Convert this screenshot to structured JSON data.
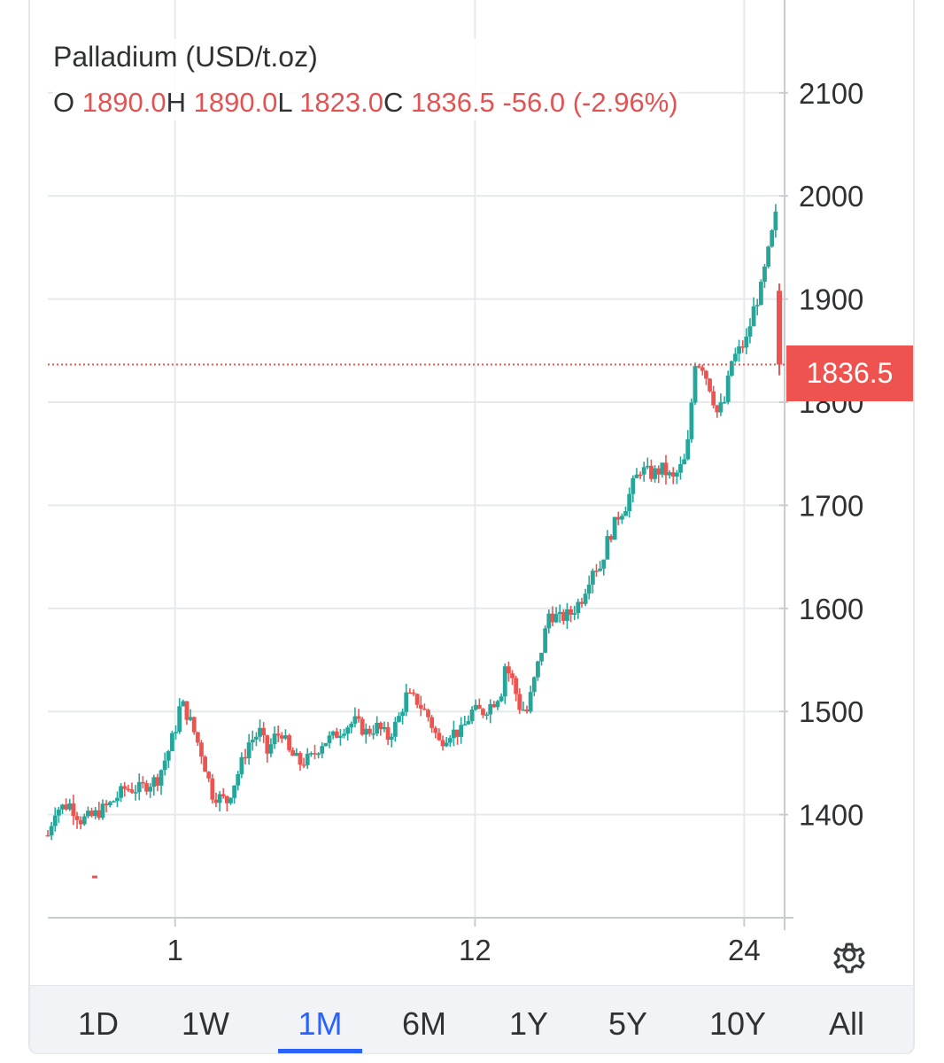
{
  "legend": {
    "title": "Palladium (USD/t.oz)",
    "o_label": "O",
    "o_value": "1890.0",
    "h_label": "H",
    "h_value": "1890.0",
    "l_label": "L",
    "l_value": "1823.0",
    "c_label": "C",
    "c_value": "1836.5",
    "change": "-56.0",
    "change_pct": "(-2.96%)"
  },
  "last_price_tag": "1836.5",
  "settings_icon": "gear-icon",
  "range_tabs": [
    {
      "label": "1D",
      "active": false
    },
    {
      "label": "1W",
      "active": false
    },
    {
      "label": "1M",
      "active": true
    },
    {
      "label": "6M",
      "active": false
    },
    {
      "label": "1Y",
      "active": false
    },
    {
      "label": "5Y",
      "active": false
    },
    {
      "label": "10Y",
      "active": false
    },
    {
      "label": "All",
      "active": false
    }
  ],
  "colors": {
    "up": "#26a69a",
    "down": "#ef5350",
    "grid": "#e6e9ec",
    "active_tab": "#2962ff",
    "text": "#2f3133"
  },
  "chart_data": {
    "type": "candlestick",
    "title": "Palladium (USD/t.oz)",
    "y_ticks": [
      1400,
      1500,
      1600,
      1700,
      1800,
      1900,
      2000,
      2100
    ],
    "ylim": [
      1300,
      2190
    ],
    "x_ticks": [
      {
        "label": "1",
        "t": 0.174
      },
      {
        "label": "12",
        "t": 0.584
      },
      {
        "label": "24",
        "t": 0.952
      }
    ],
    "last_price": 1836.5,
    "grid": true,
    "series": [
      {
        "path": [
          [
            0.0,
            1380
          ],
          [
            0.01,
            1405
          ],
          [
            0.03,
            1410
          ],
          [
            0.045,
            1395
          ],
          [
            0.06,
            1398
          ],
          [
            0.085,
            1410
          ],
          [
            0.105,
            1425
          ],
          [
            0.125,
            1425
          ],
          [
            0.15,
            1435
          ],
          [
            0.165,
            1462
          ],
          [
            0.175,
            1485
          ],
          [
            0.182,
            1510
          ],
          [
            0.195,
            1490
          ],
          [
            0.21,
            1460
          ],
          [
            0.225,
            1420
          ],
          [
            0.245,
            1413
          ],
          [
            0.26,
            1440
          ],
          [
            0.275,
            1470
          ],
          [
            0.29,
            1480
          ],
          [
            0.3,
            1460
          ],
          [
            0.31,
            1475
          ],
          [
            0.32,
            1480
          ],
          [
            0.33,
            1460
          ],
          [
            0.345,
            1450
          ],
          [
            0.36,
            1455
          ],
          [
            0.375,
            1470
          ],
          [
            0.39,
            1475
          ],
          [
            0.405,
            1485
          ],
          [
            0.42,
            1490
          ],
          [
            0.435,
            1480
          ],
          [
            0.45,
            1485
          ],
          [
            0.465,
            1475
          ],
          [
            0.478,
            1490
          ],
          [
            0.49,
            1515
          ],
          [
            0.505,
            1510
          ],
          [
            0.52,
            1495
          ],
          [
            0.535,
            1470
          ],
          [
            0.55,
            1480
          ],
          [
            0.565,
            1480
          ],
          [
            0.58,
            1500
          ],
          [
            0.595,
            1500
          ],
          [
            0.61,
            1510
          ],
          [
            0.62,
            1520
          ],
          [
            0.625,
            1545
          ],
          [
            0.635,
            1530
          ],
          [
            0.645,
            1505
          ],
          [
            0.655,
            1500
          ],
          [
            0.665,
            1530
          ],
          [
            0.675,
            1560
          ],
          [
            0.685,
            1595
          ],
          [
            0.7,
            1590
          ],
          [
            0.715,
            1595
          ],
          [
            0.73,
            1610
          ],
          [
            0.745,
            1640
          ],
          [
            0.755,
            1640
          ],
          [
            0.765,
            1665
          ],
          [
            0.78,
            1690
          ],
          [
            0.79,
            1700
          ],
          [
            0.8,
            1720
          ],
          [
            0.81,
            1735
          ],
          [
            0.825,
            1730
          ],
          [
            0.84,
            1735
          ],
          [
            0.855,
            1725
          ],
          [
            0.87,
            1742
          ],
          [
            0.875,
            1760
          ],
          [
            0.88,
            1800
          ],
          [
            0.885,
            1840
          ],
          [
            0.895,
            1835
          ],
          [
            0.905,
            1815
          ],
          [
            0.915,
            1790
          ],
          [
            0.925,
            1800
          ],
          [
            0.935,
            1840
          ],
          [
            0.945,
            1850
          ],
          [
            0.955,
            1860
          ],
          [
            0.965,
            1890
          ],
          [
            0.975,
            1910
          ],
          [
            0.985,
            1945
          ],
          [
            0.995,
            1980
          ],
          [
            1.0,
            1940
          ],
          [
            1.005,
            1890
          ],
          [
            1.015,
            1910
          ],
          [
            1.02,
            1836
          ]
        ]
      }
    ]
  }
}
